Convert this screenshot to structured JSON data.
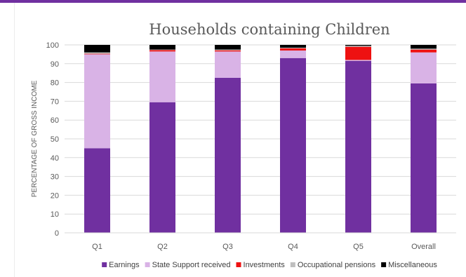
{
  "chart_data": {
    "type": "bar",
    "stacked": true,
    "title": "Households containing Children",
    "xlabel": "",
    "ylabel": "PERCENTAGE OF GROSS INCOME",
    "ylim": [
      0,
      100
    ],
    "yticks": [
      0,
      10,
      20,
      30,
      40,
      50,
      60,
      70,
      80,
      90,
      100
    ],
    "grid": true,
    "legend_position": "bottom",
    "categories": [
      "Q1",
      "Q2",
      "Q3",
      "Q4",
      "Q5",
      "Overall"
    ],
    "series": [
      {
        "name": "Earnings",
        "color": "#7030a0",
        "values": [
          45,
          69.5,
          82.5,
          93,
          91.5,
          79.5
        ]
      },
      {
        "name": "State Support received",
        "color": "#d9b3e6",
        "values": [
          50,
          27,
          14,
          4,
          0.5,
          16.5
        ]
      },
      {
        "name": "Investments",
        "color": "#ee1111",
        "values": [
          0.3,
          0.7,
          0.6,
          1.2,
          7,
          1.5
        ]
      },
      {
        "name": "Occupational pensions",
        "color": "#bfbfbf",
        "values": [
          0.7,
          0.3,
          0.4,
          0.3,
          0.5,
          0.5
        ]
      },
      {
        "name": "Miscellaneous",
        "color": "#000000",
        "values": [
          4,
          2.5,
          2.5,
          1.5,
          0.5,
          2
        ]
      }
    ]
  }
}
